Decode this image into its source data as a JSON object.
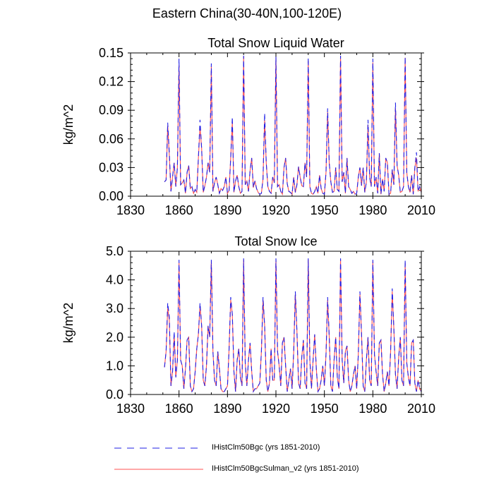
{
  "title": "Eastern China(30-40N,100-120E)",
  "colors": {
    "series1": "#1f1fe6",
    "series2": "#ff5050"
  },
  "legend": [
    {
      "label": "IHistClm50Bgc (yrs 1851-2010)",
      "style": "dashed",
      "color": "#1f1fe6"
    },
    {
      "label": "IHistClm50BgcSulman_v2 (yrs 1851-2010)",
      "style": "solid",
      "color": "#ff5050"
    }
  ],
  "chart_data": [
    {
      "type": "line",
      "title": "Total Snow Liquid Water",
      "ylabel": "kg/m^2",
      "xlabel": "",
      "xlim": [
        1830,
        2010
      ],
      "ylim": [
        0,
        0.15
      ],
      "xticks": [
        "1830",
        "1860",
        "1890",
        "1920",
        "1950",
        "1980",
        "2010"
      ],
      "yticks": [
        "0.00",
        "0.03",
        "0.06",
        "0.09",
        "0.12",
        "0.15"
      ],
      "x_start": 1851,
      "x_end": 2010,
      "series": [
        {
          "name": "IHistClm50Bgc (yrs 1851-2010)",
          "values": [
            0.015,
            0.017,
            0.077,
            0.045,
            0.005,
            0.02,
            0.035,
            0.01,
            0.03,
            0.144,
            0.012,
            0.014,
            0.017,
            0.003,
            0.025,
            0.032,
            0.008,
            0.01,
            0.003,
            0.007,
            0.004,
            0.04,
            0.08,
            0.05,
            0.004,
            0.011,
            0.02,
            0.035,
            0.025,
            0.139,
            0.005,
            0.014,
            0.02,
            0.012,
            0.003,
            0.008,
            0.006,
            0.01,
            0.02,
            0.003,
            0.006,
            0.04,
            0.083,
            0.004,
            0.016,
            0.022,
            0.01,
            0.003,
            0.005,
            0.147,
            0.012,
            0.016,
            0.005,
            0.027,
            0.04,
            0.009,
            0.016,
            0.008,
            0.004,
            0.002,
            0.003,
            0.018,
            0.087,
            0.035,
            0.01,
            0.005,
            0.003,
            0.02,
            0.014,
            0.146,
            0.01,
            0.012,
            0.005,
            0.002,
            0.03,
            0.04,
            0.013,
            0.005,
            0.004,
            0.002,
            0.02,
            0.004,
            0.012,
            0.031,
            0.02,
            0.011,
            0.01,
            0.035,
            0.02,
            0.145,
            0.01,
            0.003,
            0.002,
            0.005,
            0.01,
            0.003,
            0.022,
            0.008,
            0.003,
            0.002,
            0.025,
            0.092,
            0.035,
            0.015,
            0.004,
            0.005,
            0.03,
            0.007,
            0.005,
            0.147,
            0.015,
            0.025,
            0.003,
            0.04,
            0.01,
            0.007,
            0.003,
            0.005,
            0.002,
            0.003,
            0.02,
            0.03,
            0.011,
            0.03,
            0.004,
            0.015,
            0.08,
            0.02,
            0.01,
            0.144,
            0.01,
            0.02,
            0.003,
            0.045,
            0.002,
            0.018,
            0.005,
            0.04,
            0.035,
            0.002,
            0.003,
            0.028,
            0.012,
            0.098,
            0.032,
            0.022,
            0.004,
            0.005,
            0.01,
            0.146,
            0.025,
            0.01,
            0.004,
            0.022,
            0.002,
            0.03,
            0.046,
            0.005,
            0.01,
            0.004
          ]
        },
        {
          "name": "IHistClm50BgcSulman_v2 (yrs 1851-2010)",
          "values": [
            0.015,
            0.017,
            0.074,
            0.042,
            0.005,
            0.02,
            0.035,
            0.01,
            0.03,
            0.137,
            0.012,
            0.014,
            0.017,
            0.003,
            0.025,
            0.032,
            0.008,
            0.01,
            0.003,
            0.007,
            0.004,
            0.04,
            0.072,
            0.05,
            0.004,
            0.011,
            0.02,
            0.035,
            0.025,
            0.136,
            0.005,
            0.014,
            0.02,
            0.012,
            0.003,
            0.008,
            0.006,
            0.01,
            0.02,
            0.003,
            0.006,
            0.04,
            0.078,
            0.004,
            0.016,
            0.022,
            0.01,
            0.003,
            0.005,
            0.146,
            0.012,
            0.016,
            0.005,
            0.027,
            0.04,
            0.009,
            0.016,
            0.008,
            0.004,
            0.002,
            0.003,
            0.018,
            0.08,
            0.035,
            0.01,
            0.005,
            0.003,
            0.02,
            0.014,
            0.145,
            0.01,
            0.012,
            0.005,
            0.002,
            0.03,
            0.04,
            0.013,
            0.005,
            0.004,
            0.002,
            0.02,
            0.004,
            0.012,
            0.031,
            0.02,
            0.011,
            0.01,
            0.035,
            0.02,
            0.142,
            0.01,
            0.003,
            0.002,
            0.005,
            0.01,
            0.003,
            0.022,
            0.008,
            0.003,
            0.002,
            0.025,
            0.088,
            0.035,
            0.015,
            0.004,
            0.005,
            0.03,
            0.007,
            0.005,
            0.146,
            0.015,
            0.025,
            0.003,
            0.04,
            0.01,
            0.007,
            0.003,
            0.005,
            0.002,
            0.003,
            0.02,
            0.03,
            0.011,
            0.03,
            0.004,
            0.015,
            0.075,
            0.02,
            0.01,
            0.14,
            0.01,
            0.02,
            0.003,
            0.045,
            0.002,
            0.018,
            0.005,
            0.04,
            0.035,
            0.002,
            0.003,
            0.028,
            0.012,
            0.092,
            0.032,
            0.022,
            0.004,
            0.005,
            0.01,
            0.145,
            0.025,
            0.01,
            0.004,
            0.022,
            0.002,
            0.03,
            0.04,
            0.005,
            0.01,
            0.004
          ]
        }
      ]
    },
    {
      "type": "line",
      "title": "Total Snow Ice",
      "ylabel": "kg/m^2",
      "xlabel": "",
      "xlim": [
        1830,
        2010
      ],
      "ylim": [
        0,
        5
      ],
      "xticks": [
        "1830",
        "1860",
        "1890",
        "1920",
        "1950",
        "1980",
        "2010"
      ],
      "yticks": [
        "0.0",
        "1.0",
        "2.0",
        "3.0",
        "4.0",
        "5.0"
      ],
      "x_start": 1851,
      "x_end": 2010,
      "series": [
        {
          "name": "IHistClm50Bgc (yrs 1851-2010)",
          "values": [
            0.95,
            1.5,
            3.2,
            2.7,
            0.3,
            0.8,
            2.2,
            0.6,
            1.2,
            4.7,
            1.2,
            1.0,
            0.2,
            0.9,
            1.9,
            2.0,
            0.3,
            0.1,
            0.2,
            0.8,
            1.6,
            2.1,
            3.2,
            2.4,
            0.5,
            0.3,
            1.0,
            2.4,
            2.0,
            4.7,
            1.5,
            0.5,
            0.3,
            1.5,
            0.9,
            0.2,
            0.1,
            0.1,
            0.2,
            0.3,
            1.6,
            3.4,
            2.8,
            0.8,
            0.1,
            1.2,
            1.6,
            0.6,
            0.3,
            4.75,
            1.1,
            0.3,
            1.2,
            1.8,
            0.8,
            0.1,
            0.2,
            0.2,
            0.3,
            0.4,
            1.5,
            3.4,
            2.4,
            0.5,
            0.1,
            0.4,
            1.6,
            0.5,
            0.5,
            4.75,
            1.5,
            1.0,
            0.3,
            1.8,
            2.0,
            1.0,
            0.1,
            0.5,
            0.9,
            0.2,
            1.5,
            3.6,
            2.2,
            0.4,
            0.2,
            1.3,
            1.9,
            0.4,
            0.2,
            4.75,
            1.2,
            0.2,
            1.2,
            2.1,
            0.9,
            0.1,
            0.2,
            0.5,
            1.0,
            0.3,
            1.4,
            3.4,
            2.0,
            0.3,
            0.1,
            1.2,
            2.0,
            0.6,
            0.2,
            4.75,
            1.2,
            0.4,
            1.5,
            1.7,
            0.5,
            0.1,
            0.3,
            0.7,
            1.0,
            0.2,
            1.4,
            3.6,
            2.1,
            0.3,
            0.1,
            1.2,
            2.0,
            0.5,
            0.3,
            4.7,
            1.4,
            0.8,
            0.3,
            1.8,
            1.9,
            0.7,
            0.1,
            0.4,
            0.8,
            0.3,
            1.5,
            3.7,
            2.3,
            0.7,
            0.2,
            1.3,
            2.0,
            0.5,
            0.3,
            4.7,
            1.1,
            0.6,
            0.3,
            1.8,
            1.9,
            0.4,
            0.1,
            0.5,
            0.2,
            0.1
          ]
        },
        {
          "name": "IHistClm50BgcSulman_v2 (yrs 1851-2010)",
          "values": [
            0.95,
            1.5,
            3.0,
            2.6,
            0.3,
            0.8,
            2.1,
            0.6,
            1.2,
            4.6,
            1.2,
            1.0,
            0.2,
            0.9,
            1.9,
            2.0,
            0.3,
            0.1,
            0.2,
            0.8,
            1.6,
            2.1,
            3.1,
            2.4,
            0.5,
            0.3,
            1.0,
            2.4,
            2.0,
            4.65,
            1.5,
            0.5,
            0.3,
            1.5,
            0.9,
            0.2,
            0.1,
            0.1,
            0.2,
            0.3,
            1.6,
            3.3,
            2.8,
            0.8,
            0.1,
            1.2,
            1.6,
            0.6,
            0.3,
            4.7,
            1.1,
            0.3,
            1.2,
            1.8,
            0.8,
            0.1,
            0.2,
            0.2,
            0.3,
            0.4,
            1.5,
            3.3,
            2.4,
            0.5,
            0.1,
            0.4,
            1.6,
            0.5,
            0.5,
            4.7,
            1.5,
            1.0,
            0.3,
            1.8,
            2.0,
            1.0,
            0.1,
            0.5,
            0.9,
            0.2,
            1.5,
            3.5,
            2.2,
            0.4,
            0.2,
            1.3,
            1.9,
            0.4,
            0.2,
            4.7,
            1.2,
            0.2,
            1.2,
            2.1,
            0.9,
            0.1,
            0.2,
            0.5,
            1.0,
            0.3,
            1.4,
            3.3,
            2.0,
            0.3,
            0.1,
            1.2,
            2.0,
            0.6,
            0.2,
            4.7,
            1.2,
            0.4,
            1.5,
            1.7,
            0.5,
            0.1,
            0.3,
            0.7,
            1.0,
            0.2,
            1.4,
            3.5,
            2.1,
            0.3,
            0.1,
            1.2,
            2.0,
            0.5,
            0.3,
            4.65,
            1.4,
            0.8,
            0.3,
            1.8,
            1.9,
            0.7,
            0.1,
            0.4,
            0.8,
            0.3,
            1.5,
            3.6,
            2.3,
            0.7,
            0.2,
            1.3,
            2.0,
            0.5,
            0.3,
            4.6,
            1.1,
            0.6,
            0.3,
            1.8,
            1.9,
            0.4,
            0.1,
            0.5,
            0.2,
            0.1
          ]
        }
      ]
    }
  ]
}
